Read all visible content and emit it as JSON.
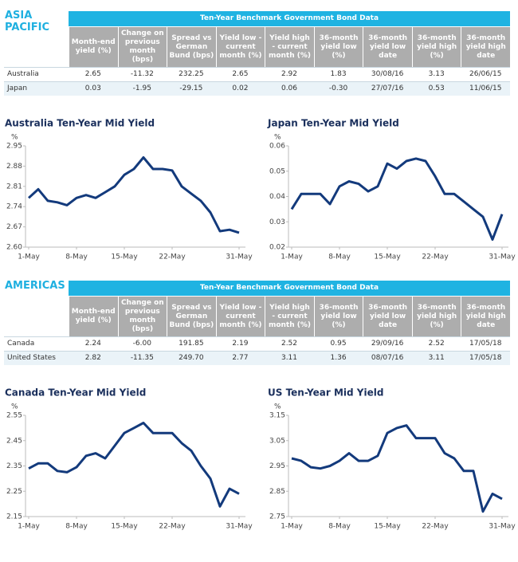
{
  "sections": [
    {
      "heading": "ASIA PACIFIC",
      "table": {
        "title": "Ten-Year Benchmark Government Bond Data",
        "columns": [
          "Month-end yield (%)",
          "Change on previous month (bps)",
          "Spread vs German Bund (bps)",
          "Yield low - current month (%)",
          "Yield high - current month (%)",
          "36-month yield low (%)",
          "36-month yield low date",
          "36-month yield high (%)",
          "36-month yield high date"
        ],
        "rows": [
          [
            "Australia",
            "2.65",
            "-11.32",
            "232.25",
            "2.65",
            "2.92",
            "1.83",
            "30/08/16",
            "3.13",
            "26/06/15"
          ],
          [
            "Japan",
            "0.03",
            "-1.95",
            "-29.15",
            "0.02",
            "0.06",
            "-0.30",
            "27/07/16",
            "0.53",
            "11/06/15"
          ]
        ]
      }
    },
    {
      "heading": "AMERICAS",
      "table": {
        "title": "Ten-Year Benchmark Government Bond Data",
        "columns": [
          "Month-end yield (%)",
          "Change on previous month (bps)",
          "Spread vs German Bund (bps)",
          "Yield low - current month (%)",
          "Yield high - current month (%)",
          "36-month yield low (%)",
          "36-month yield low date",
          "36-month yield high (%)",
          "36-month yield high date"
        ],
        "rows": [
          [
            "Canada",
            "2.24",
            "-6.00",
            "191.85",
            "2.19",
            "2.52",
            "0.95",
            "29/09/16",
            "2.52",
            "17/05/18"
          ],
          [
            "United States",
            "2.82",
            "-11.35",
            "249.70",
            "2.77",
            "3.11",
            "1.36",
            "08/07/16",
            "3.11",
            "17/05/18"
          ]
        ]
      }
    }
  ],
  "chart_data": [
    {
      "type": "line",
      "title": "Australia Ten-Year Mid Yield",
      "y_label": "%",
      "color": "#133a7c",
      "categories": [
        "1-May",
        null,
        null,
        null,
        null,
        "8-May",
        null,
        null,
        null,
        null,
        "15-May",
        null,
        null,
        null,
        null,
        "22-May",
        null,
        null,
        null,
        null,
        null,
        null,
        "31-May"
      ],
      "values": [
        2.77,
        2.8,
        2.76,
        2.755,
        2.745,
        2.77,
        2.78,
        2.77,
        2.79,
        2.81,
        2.85,
        2.87,
        2.91,
        2.87,
        2.87,
        2.865,
        2.81,
        2.785,
        2.76,
        2.72,
        2.655,
        2.66,
        2.65
      ],
      "ylim": [
        2.6,
        2.95
      ],
      "yticks": [
        {
          "value": 2.6,
          "label": "2.60"
        },
        2.67,
        2.74,
        2.81,
        2.88,
        2.95
      ]
    },
    {
      "type": "line",
      "title": "Japan Ten-Year Mid Yield",
      "y_label": "%",
      "color": "#133a7c",
      "categories": [
        "1-May",
        null,
        null,
        null,
        null,
        "8-May",
        null,
        null,
        null,
        null,
        "15-May",
        null,
        null,
        null,
        null,
        "22-May",
        null,
        null,
        null,
        null,
        null,
        null,
        "31-May"
      ],
      "values": [
        0.035,
        0.041,
        0.041,
        0.041,
        0.037,
        0.044,
        0.046,
        0.045,
        0.042,
        0.044,
        0.053,
        0.051,
        0.054,
        0.055,
        0.054,
        0.048,
        0.041,
        0.041,
        0.038,
        0.035,
        0.032,
        0.023,
        0.033
      ],
      "ylim": [
        0.02,
        0.06
      ],
      "yticks": [
        0.02,
        0.03,
        0.04,
        0.05,
        0.06
      ]
    },
    {
      "type": "line",
      "title": "Canada Ten-Year Mid Yield",
      "y_label": "%",
      "color": "#133a7c",
      "categories": [
        "1-May",
        null,
        null,
        null,
        null,
        "8-May",
        null,
        null,
        null,
        null,
        "15-May",
        null,
        null,
        null,
        null,
        "22-May",
        null,
        null,
        null,
        null,
        null,
        null,
        "31-May"
      ],
      "values": [
        2.34,
        2.36,
        2.36,
        2.33,
        2.325,
        2.345,
        2.39,
        2.4,
        2.38,
        2.43,
        2.48,
        2.5,
        2.52,
        2.48,
        2.48,
        2.48,
        2.44,
        2.41,
        2.35,
        2.3,
        2.19,
        2.26,
        2.24
      ],
      "ylim": [
        2.15,
        2.55
      ],
      "yticks": [
        2.15,
        2.25,
        2.35,
        2.45,
        2.55
      ]
    },
    {
      "type": "line",
      "title": "US Ten-Year Mid Yield",
      "y_label": "%",
      "color": "#133a7c",
      "categories": [
        "1-May",
        null,
        null,
        null,
        null,
        "8-May",
        null,
        null,
        null,
        null,
        "15-May",
        null,
        null,
        null,
        null,
        "22-May",
        null,
        null,
        null,
        null,
        null,
        null,
        "31-May"
      ],
      "values": [
        2.98,
        2.97,
        2.945,
        2.94,
        2.95,
        2.97,
        3.0,
        2.97,
        2.97,
        2.99,
        3.08,
        3.1,
        3.11,
        3.06,
        3.06,
        3.06,
        3.0,
        2.98,
        2.93,
        2.93,
        2.77,
        2.84,
        2.82
      ],
      "ylim": [
        2.75,
        3.15
      ],
      "yticks": [
        2.75,
        2.85,
        2.95,
        3.05,
        3.15
      ]
    }
  ]
}
